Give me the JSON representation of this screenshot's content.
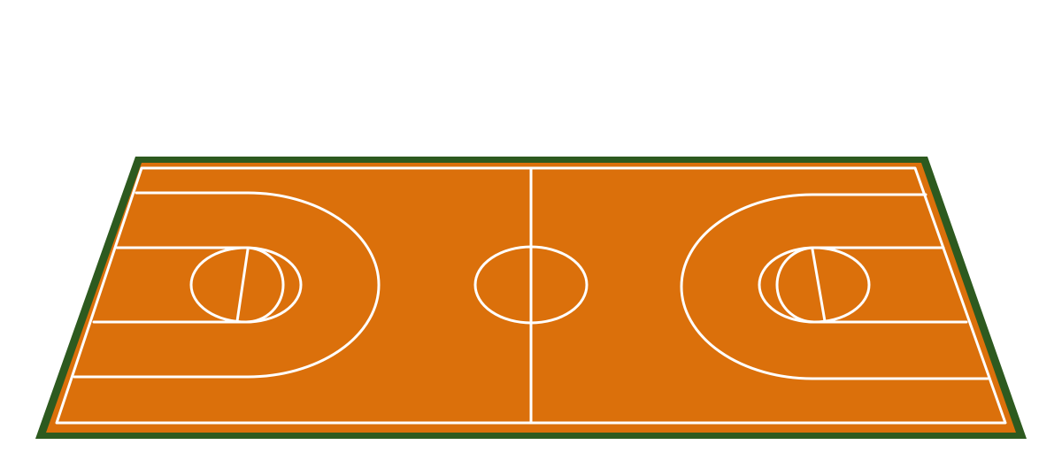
{
  "scene": {
    "background_color": "#ffffff",
    "border_color": "#2d5a1f",
    "floor_color": "#db700b",
    "line_color": "#ffffff"
  },
  "court": {
    "description_visible_text": ""
  }
}
